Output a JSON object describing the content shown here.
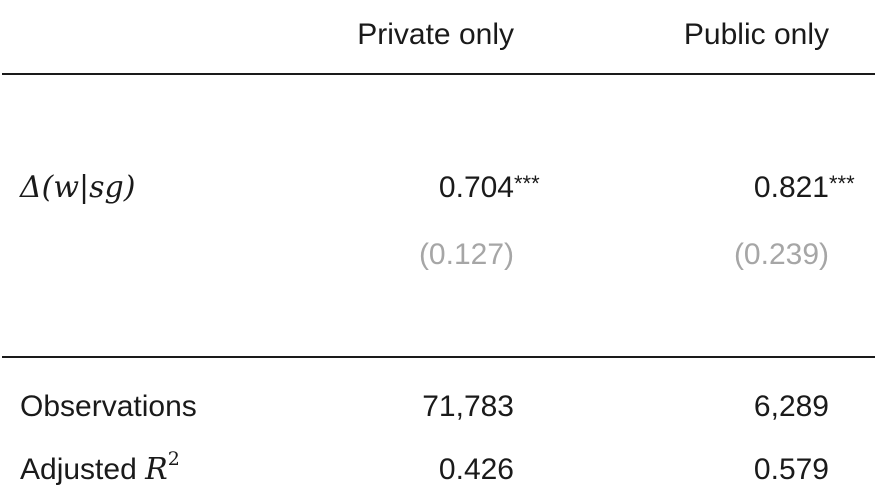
{
  "table": {
    "columns": [
      "Private only",
      "Public only"
    ],
    "rows": {
      "delta": {
        "label_math": "Δ(w|sg)",
        "coef": [
          "0.704",
          "0.821"
        ],
        "stars": [
          "***",
          "***"
        ],
        "se": [
          "(0.127)",
          "(0.239)"
        ]
      },
      "observations": {
        "label": "Observations",
        "values": [
          "71,783",
          "6,289"
        ]
      },
      "adj_r2": {
        "label": "Adjusted",
        "label_math": "R",
        "label_sup": "2",
        "values": [
          "0.426",
          "0.579"
        ]
      }
    }
  },
  "colors": {
    "text": "#1a1a1a",
    "standard_error": "#a6a6a6"
  }
}
